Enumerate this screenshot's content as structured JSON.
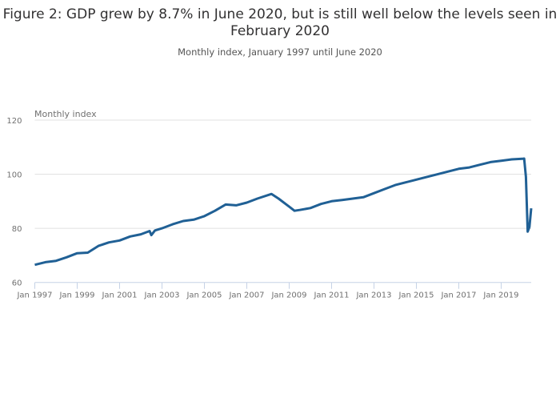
{
  "chart_data": {
    "type": "line",
    "title": "Figure 2: GDP grew by 8.7% in June 2020, but is still well below the levels seen in February 2020",
    "subtitle": "Monthly index, January 1997 until June 2020",
    "ylabel": "Monthly index",
    "xlabel": "",
    "ylim": [
      60,
      120
    ],
    "xlim": [
      "1997-01",
      "2020-06"
    ],
    "yticks": [
      60,
      80,
      100,
      120
    ],
    "xticks": [
      "Jan 1997",
      "Jan 1999",
      "Jan 2001",
      "Jan 2003",
      "Jan 2005",
      "Jan 2007",
      "Jan 2009",
      "Jan 2011",
      "Jan 2013",
      "Jan 2015",
      "Jan 2017",
      "Jan 2019"
    ],
    "grid": "horizontal",
    "line_color": "#206095",
    "series": [
      {
        "x": [
          "1997-01",
          "1997-07",
          "1998-01",
          "1998-07",
          "1999-01",
          "1999-07",
          "2000-01",
          "2000-07",
          "2001-01",
          "2001-07",
          "2002-01",
          "2002-06",
          "2002-07",
          "2002-09",
          "2003-01",
          "2003-07",
          "2004-01",
          "2004-07",
          "2005-01",
          "2005-07",
          "2006-01",
          "2006-07",
          "2007-01",
          "2007-07",
          "2008-03",
          "2008-07",
          "2009-01",
          "2009-04",
          "2009-07",
          "2010-01",
          "2010-07",
          "2011-01",
          "2011-07",
          "2012-01",
          "2012-07",
          "2013-01",
          "2013-07",
          "2014-01",
          "2014-07",
          "2015-01",
          "2015-07",
          "2016-01",
          "2016-07",
          "2017-01",
          "2017-07",
          "2018-01",
          "2018-07",
          "2019-01",
          "2019-07",
          "2020-01",
          "2020-02",
          "2020-03",
          "2020-04",
          "2020-05",
          "2020-06"
        ],
        "values": [
          66.5,
          67.5,
          68.0,
          69.3,
          70.8,
          71.0,
          73.5,
          74.8,
          75.5,
          77.0,
          77.8,
          79.0,
          77.5,
          79.2,
          80.0,
          81.5,
          82.7,
          83.2,
          84.5,
          86.5,
          88.8,
          88.5,
          89.5,
          91.0,
          92.7,
          91.0,
          88.0,
          86.5,
          86.8,
          87.5,
          89.0,
          90.0,
          90.5,
          91.0,
          91.5,
          93.0,
          94.5,
          96.0,
          97.0,
          98.0,
          99.0,
          100.0,
          101.0,
          102.0,
          102.5,
          103.5,
          104.5,
          105.0,
          105.5,
          105.7,
          105.8,
          99.0,
          78.8,
          80.5,
          87.4
        ]
      }
    ]
  }
}
